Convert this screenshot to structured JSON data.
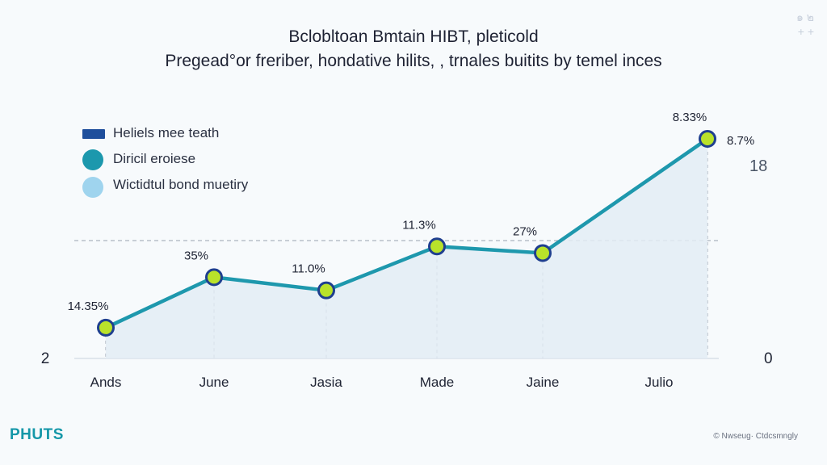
{
  "title": "Bclobltoan Bmtain HIBT, pleticold",
  "subtitle": "Pregead°or freriber, hondative hilits, , trnales buitits by temel inces",
  "corner_glyphs": [
    "๑ ๒",
    "+ +"
  ],
  "brand": "PHUTS",
  "credit": "© Nwseug· Ctdcsmngly",
  "colors": {
    "line": "#1e98ad",
    "area": "#e3ecf4",
    "marker_fill": "#b9e22a",
    "marker_stroke": "#1f3f8f",
    "grid": "#9aa3b0",
    "background": "#f7fafc"
  },
  "chart_data": {
    "type": "line",
    "categories": [
      "Ands",
      "June",
      "Jasia",
      "Made",
      "Jaine",
      "Julio"
    ],
    "series": [
      {
        "name": "Heliels mee teath",
        "values": [
          14.35,
          35,
          11.0,
          11.3,
          27,
          8.33
        ],
        "data_labels": [
          "14.35%",
          "35%",
          "11.0%",
          "11.3%",
          "27%",
          "8.33%"
        ]
      }
    ],
    "plot_heights": [
      0.14,
      0.37,
      0.31,
      0.51,
      0.48,
      1.0
    ],
    "legend": [
      "Heliels mee teath",
      "Diricil eroiese",
      "Wictidtul bond muetiry"
    ],
    "legend_placement": "top-left",
    "left_axis_label": "2",
    "right_axis_labels": [
      "8.7%",
      "18",
      "0"
    ],
    "grid": "dashed",
    "area_fill": true
  }
}
